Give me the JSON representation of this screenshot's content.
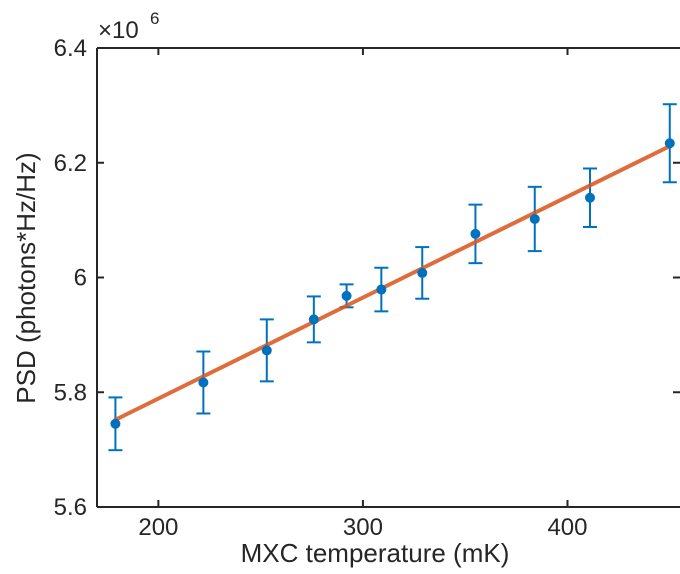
{
  "chart_data": {
    "type": "scatter",
    "title": "",
    "xlabel": "MXC temperature (mK)",
    "ylabel": "PSD (photons*Hz/Hz)",
    "y_multiplier": {
      "base": "×10",
      "exponent": "6"
    },
    "xlim": [
      170,
      455
    ],
    "ylim": [
      5.6,
      6.4
    ],
    "x_ticks": [
      200,
      300,
      400
    ],
    "x_tick_labels": [
      "200",
      "300",
      "400"
    ],
    "y_ticks": [
      5.6,
      5.8,
      6.0,
      6.2,
      6.4
    ],
    "y_tick_labels": [
      "5.6",
      "5.8",
      "6",
      "6.2",
      "6.4"
    ],
    "grid": false,
    "series": [
      {
        "kind": "points_with_errorbars",
        "color": "#0072BD",
        "points": [
          {
            "x": 179,
            "y": 5.745,
            "err": 0.046
          },
          {
            "x": 222,
            "y": 5.817,
            "err": 0.054
          },
          {
            "x": 253,
            "y": 5.873,
            "err": 0.054
          },
          {
            "x": 276,
            "y": 5.927,
            "err": 0.04
          },
          {
            "x": 292,
            "y": 5.968,
            "err": 0.02
          },
          {
            "x": 309,
            "y": 5.979,
            "err": 0.038
          },
          {
            "x": 329,
            "y": 6.008,
            "err": 0.045
          },
          {
            "x": 355,
            "y": 6.076,
            "err": 0.051
          },
          {
            "x": 384,
            "y": 6.102,
            "err": 0.056
          },
          {
            "x": 411,
            "y": 6.139,
            "err": 0.051
          },
          {
            "x": 450,
            "y": 6.234,
            "err": 0.068
          }
        ]
      },
      {
        "kind": "fit_line",
        "color": "#D95319",
        "x": [
          179,
          450
        ],
        "y": [
          5.752,
          6.229
        ]
      }
    ]
  }
}
